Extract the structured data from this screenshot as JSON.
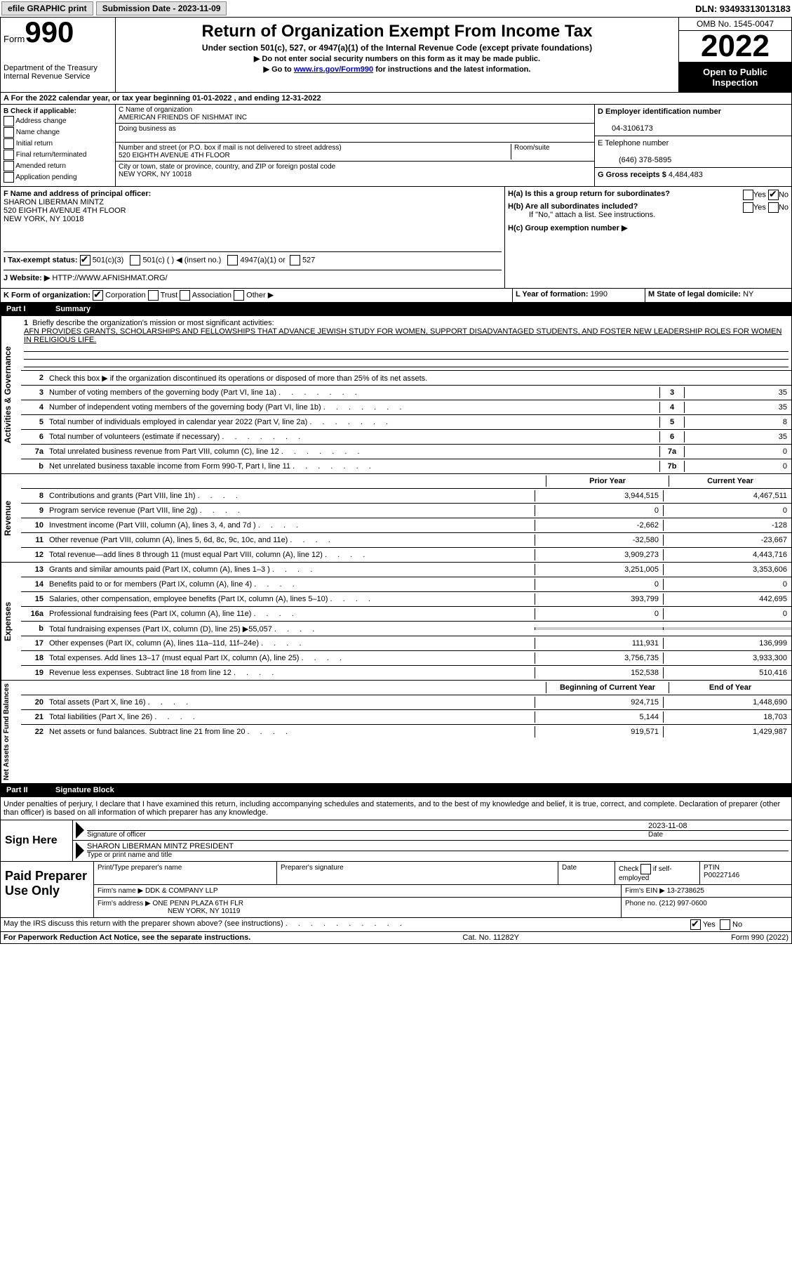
{
  "toolbar": {
    "efile": "efile GRAPHIC print",
    "submission_label": "Submission Date - 2023-11-09",
    "dln_label": "DLN: 93493313013183"
  },
  "header": {
    "form_word": "Form",
    "form_num": "990",
    "dept1": "Department of the Treasury",
    "dept2": "Internal Revenue Service",
    "title": "Return of Organization Exempt From Income Tax",
    "subtitle": "Under section 501(c), 527, or 4947(a)(1) of the Internal Revenue Code (except private foundations)",
    "instr1": "▶ Do not enter social security numbers on this form as it may be made public.",
    "instr2_a": "▶ Go to ",
    "instr2_link": "www.irs.gov/Form990",
    "instr2_b": " for instructions and the latest information.",
    "omb": "OMB No. 1545-0047",
    "year": "2022",
    "open": "Open to Public Inspection"
  },
  "a_row": "A  For the 2022 calendar year, or tax year beginning 01-01-2022      , and ending 12-31-2022",
  "b": {
    "label": "B Check if applicable:",
    "opts": [
      "Address change",
      "Name change",
      "Initial return",
      "Final return/terminated",
      "Amended return",
      "Application pending"
    ]
  },
  "c": {
    "name_label": "C Name of organization",
    "name": "AMERICAN FRIENDS OF NISHMAT INC",
    "dba_label": "Doing business as",
    "addr_label": "Number and street (or P.O. box if mail is not delivered to street address)",
    "room_label": "Room/suite",
    "addr": "520 EIGHTH AVENUE 4TH FLOOR",
    "city_label": "City or town, state or province, country, and ZIP or foreign postal code",
    "city": "NEW YORK, NY   10018"
  },
  "d": {
    "label": "D Employer identification number",
    "val": "04-3106173"
  },
  "e": {
    "label": "E Telephone number",
    "val": "(646) 378-5895"
  },
  "g": {
    "label": "G Gross receipts $ ",
    "val": "4,484,483"
  },
  "f": {
    "label": "F  Name and address of principal officer:",
    "name": "SHARON LIBERMAN MINTZ",
    "addr": "520 EIGHTH AVENUE 4TH FLOOR",
    "city": "NEW YORK, NY   10018"
  },
  "h": {
    "a": "H(a)  Is this a group return for subordinates?",
    "b": "H(b)  Are all subordinates included?",
    "note": "If \"No,\" attach a list. See instructions.",
    "c": "H(c)  Group exemption number ▶",
    "yes": "Yes",
    "no": "No"
  },
  "i": {
    "label": "I      Tax-exempt status:",
    "o1": "501(c)(3)",
    "o2": "501(c) (  ) ◀ (insert no.)",
    "o3": "4947(a)(1) or",
    "o4": "527"
  },
  "j": {
    "label": "J    Website: ▶",
    "val": "  HTTP://WWW.AFNISHMAT.ORG/"
  },
  "k": {
    "label": "K Form of organization:",
    "o1": "Corporation",
    "o2": "Trust",
    "o3": "Association",
    "o4": "Other ▶"
  },
  "l": {
    "label": "L Year of formation: ",
    "val": "1990"
  },
  "m": {
    "label": "M State of legal domicile: ",
    "val": "NY"
  },
  "parts": {
    "p1": "Part I",
    "p1t": "Summary",
    "p2": "Part II",
    "p2t": "Signature Block"
  },
  "vtabs": {
    "ag": "Activities & Governance",
    "rev": "Revenue",
    "exp": "Expenses",
    "na": "Net Assets or Fund Balances"
  },
  "summary": {
    "l1": "Briefly describe the organization's mission or most significant activities:",
    "mission": "AFN PROVIDES GRANTS, SCHOLARSHIPS AND FELLOWSHIPS THAT ADVANCE JEWISH STUDY FOR WOMEN, SUPPORT DISADVANTAGED STUDENTS, AND FOSTER NEW LEADERSHIP ROLES FOR WOMEN IN RELIGIOUS LIFE.",
    "l2": "Check this box ▶       if the organization discontinued its operations or disposed of more than 25% of its net assets.",
    "lines_ag": [
      {
        "n": "3",
        "t": "Number of voting members of the governing body (Part VI, line 1a)",
        "b": "3",
        "v": "35"
      },
      {
        "n": "4",
        "t": "Number of independent voting members of the governing body (Part VI, line 1b)",
        "b": "4",
        "v": "35"
      },
      {
        "n": "5",
        "t": "Total number of individuals employed in calendar year 2022 (Part V, line 2a)",
        "b": "5",
        "v": "8"
      },
      {
        "n": "6",
        "t": "Total number of volunteers (estimate if necessary)",
        "b": "6",
        "v": "35"
      },
      {
        "n": "7a",
        "t": "Total unrelated business revenue from Part VIII, column (C), line 12",
        "b": "7a",
        "v": "0"
      },
      {
        "n": "b",
        "t": "Net unrelated business taxable income from Form 990-T, Part I, line 11",
        "b": "7b",
        "v": "0"
      }
    ],
    "py": "Prior Year",
    "cy": "Current Year",
    "lines_rev": [
      {
        "n": "8",
        "t": "Contributions and grants (Part VIII, line 1h)",
        "py": "3,944,515",
        "cy": "4,467,511"
      },
      {
        "n": "9",
        "t": "Program service revenue (Part VIII, line 2g)",
        "py": "0",
        "cy": "0"
      },
      {
        "n": "10",
        "t": "Investment income (Part VIII, column (A), lines 3, 4, and 7d )",
        "py": "-2,662",
        "cy": "-128"
      },
      {
        "n": "11",
        "t": "Other revenue (Part VIII, column (A), lines 5, 6d, 8c, 9c, 10c, and 11e)",
        "py": "-32,580",
        "cy": "-23,667"
      },
      {
        "n": "12",
        "t": "Total revenue—add lines 8 through 11 (must equal Part VIII, column (A), line 12)",
        "py": "3,909,273",
        "cy": "4,443,716"
      }
    ],
    "lines_exp": [
      {
        "n": "13",
        "t": "Grants and similar amounts paid (Part IX, column (A), lines 1–3 )",
        "py": "3,251,005",
        "cy": "3,353,606"
      },
      {
        "n": "14",
        "t": "Benefits paid to or for members (Part IX, column (A), line 4)",
        "py": "0",
        "cy": "0"
      },
      {
        "n": "15",
        "t": "Salaries, other compensation, employee benefits (Part IX, column (A), lines 5–10)",
        "py": "393,799",
        "cy": "442,695"
      },
      {
        "n": "16a",
        "t": "Professional fundraising fees (Part IX, column (A), line 11e)",
        "py": "0",
        "cy": "0"
      },
      {
        "n": "b",
        "t": "Total fundraising expenses (Part IX, column (D), line 25) ▶55,057",
        "py": "grey",
        "cy": "grey"
      },
      {
        "n": "17",
        "t": "Other expenses (Part IX, column (A), lines 11a–11d, 11f–24e)",
        "py": "111,931",
        "cy": "136,999"
      },
      {
        "n": "18",
        "t": "Total expenses. Add lines 13–17 (must equal Part IX, column (A), line 25)",
        "py": "3,756,735",
        "cy": "3,933,300"
      },
      {
        "n": "19",
        "t": "Revenue less expenses. Subtract line 18 from line 12",
        "py": "152,538",
        "cy": "510,416"
      }
    ],
    "boy": "Beginning of Current Year",
    "eoy": "End of Year",
    "lines_na": [
      {
        "n": "20",
        "t": "Total assets (Part X, line 16)",
        "py": "924,715",
        "cy": "1,448,690"
      },
      {
        "n": "21",
        "t": "Total liabilities (Part X, line 26)",
        "py": "5,144",
        "cy": "18,703"
      },
      {
        "n": "22",
        "t": "Net assets or fund balances. Subtract line 21 from line 20",
        "py": "919,571",
        "cy": "1,429,987"
      }
    ]
  },
  "sig": {
    "penalties": "Under penalties of perjury, I declare that I have examined this return, including accompanying schedules and statements, and to the best of my knowledge and belief, it is true, correct, and complete. Declaration of preparer (other than officer) is based on all information of which preparer has any knowledge.",
    "here": "Sign Here",
    "sig_officer": "Signature of officer",
    "date": "Date",
    "date_val": "2023-11-08",
    "name_title": "SHARON LIBERMAN MINTZ  PRESIDENT",
    "name_label": "Type or print name and title"
  },
  "paid": {
    "label": "Paid Preparer Use Only",
    "h1": "Print/Type preparer's name",
    "h2": "Preparer's signature",
    "h3": "Date",
    "h4a": "Check",
    "h4b": "if self-employed",
    "h5": "PTIN",
    "ptin": "P00227146",
    "firm_name_l": "Firm's name    ▶",
    "firm_name": "DDK & COMPANY LLP",
    "firm_ein_l": "Firm's EIN ▶ ",
    "firm_ein": "13-2738625",
    "firm_addr_l": "Firm's address ▶",
    "firm_addr1": "ONE PENN PLAZA 6TH FLR",
    "firm_addr2": "NEW YORK, NY   10119",
    "phone_l": "Phone no. ",
    "phone": "(212) 997-0600"
  },
  "discuss": {
    "t": "May the IRS discuss this return with the preparer shown above? (see instructions)",
    "yes": "Yes",
    "no": "No"
  },
  "footer": {
    "l": "For Paperwork Reduction Act Notice, see the separate instructions.",
    "m": "Cat. No. 11282Y",
    "r": "Form 990 (2022)"
  }
}
